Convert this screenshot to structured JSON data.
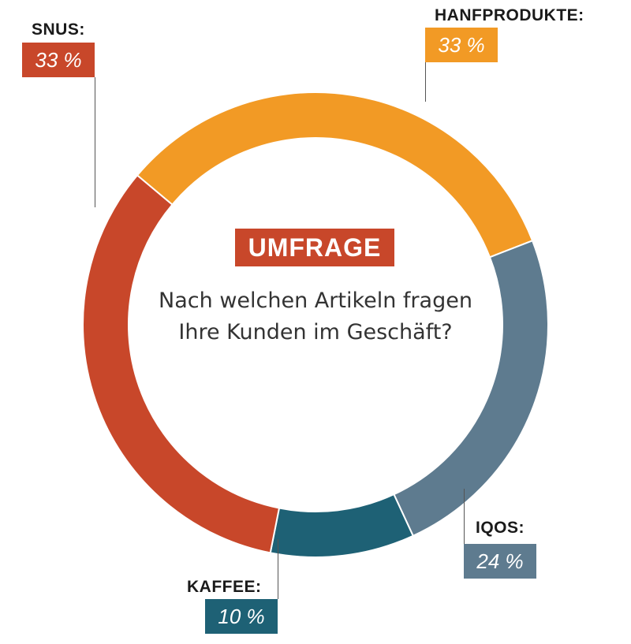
{
  "center": {
    "badge": "UMFRAGE",
    "badge_color": "#c8472a",
    "question": "Nach welchen Artikeln fragen Ihre Kunden im Geschäft?"
  },
  "chart_data": {
    "type": "pie",
    "donut": true,
    "title": "",
    "categories": [
      "HANFPRODUKTE:",
      "IQOS:",
      "KAFFEE:",
      "SNUS:"
    ],
    "values": [
      33,
      24,
      10,
      33
    ],
    "value_labels": [
      "33 %",
      "24 %",
      "10 %",
      "33 %"
    ],
    "colors": [
      "#f29a25",
      "#5e7b8f",
      "#1e6175",
      "#c8472a"
    ],
    "start_angle_deg": -50,
    "direction": "clockwise"
  }
}
